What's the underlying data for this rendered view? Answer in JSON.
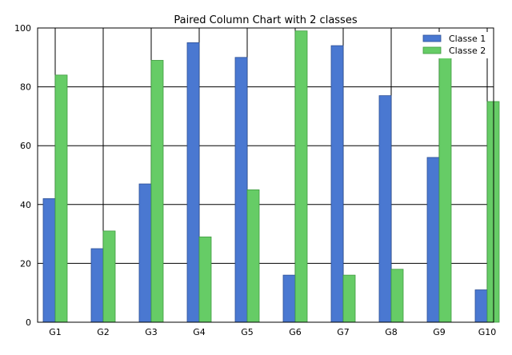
{
  "chart_data": {
    "type": "bar",
    "title": "Paired Column Chart with 2 classes",
    "xlabel": "",
    "ylabel": "",
    "categories": [
      "G1",
      "G2",
      "G3",
      "G4",
      "G5",
      "G6",
      "G7",
      "G8",
      "G9",
      "G10"
    ],
    "series": [
      {
        "name": "Classe 1",
        "color": "#4a78d1",
        "values": [
          42,
          25,
          47,
          95,
          90,
          16,
          94,
          77,
          56,
          11
        ]
      },
      {
        "name": "Classe 2",
        "color": "#66cc66",
        "values": [
          84,
          31,
          89,
          29,
          45,
          99,
          16,
          18,
          97,
          75
        ]
      }
    ],
    "ylim": [
      0,
      100
    ],
    "yticks": [
      0,
      20,
      40,
      60,
      80,
      100
    ],
    "grid": true,
    "legend_position": "top-right"
  }
}
